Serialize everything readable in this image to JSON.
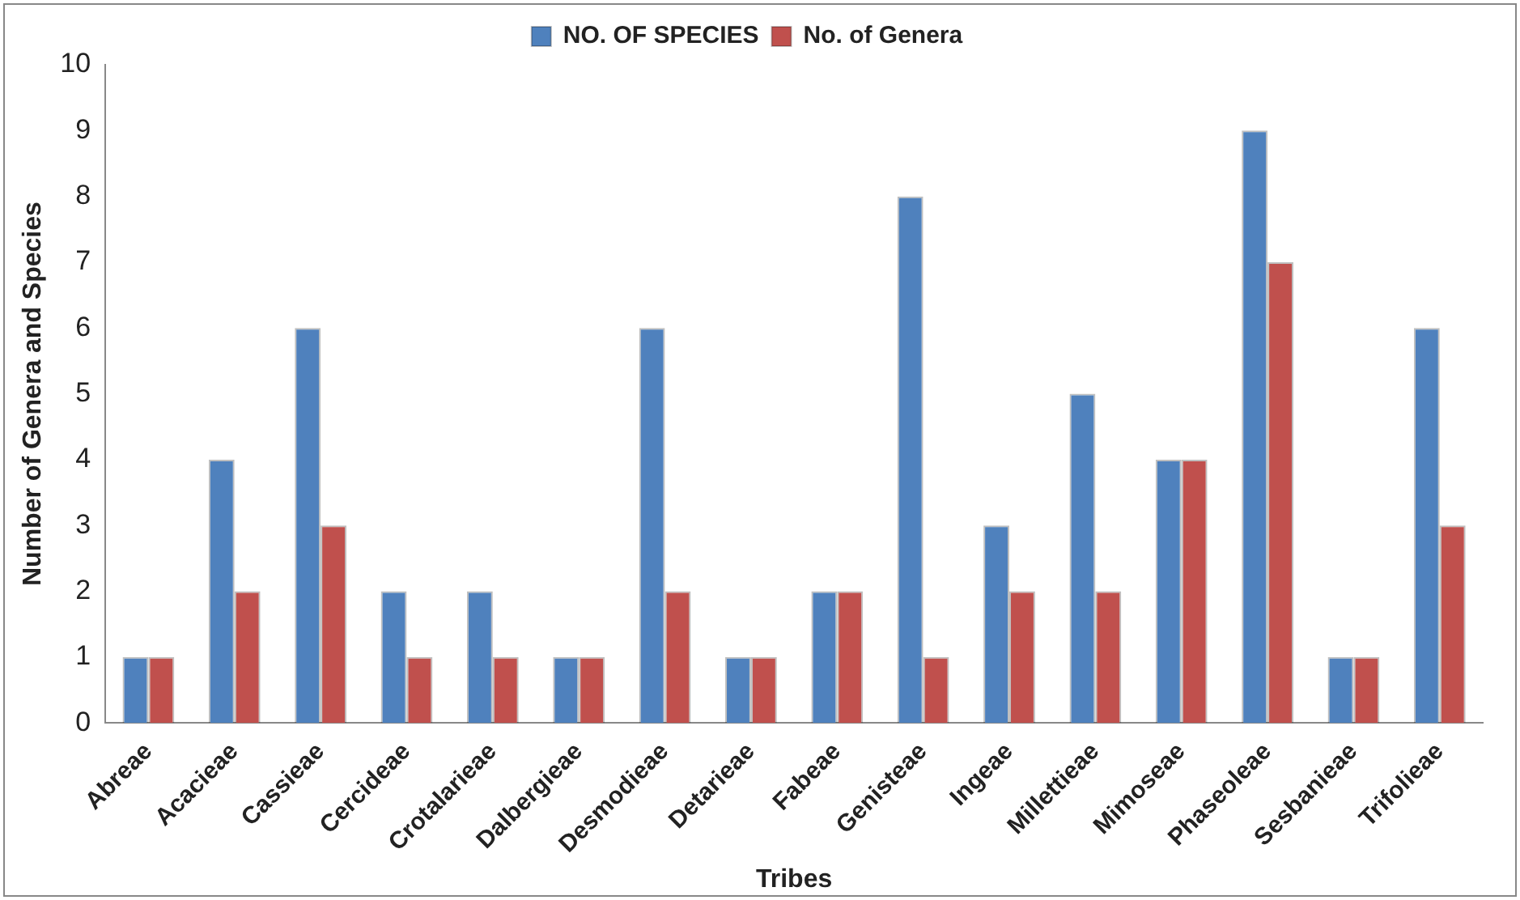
{
  "chart_data": {
    "type": "bar",
    "xlabel": "Tribes",
    "ylabel": "Number of Genera and Species",
    "categories": [
      "Abreae",
      "Acacieae",
      "Cassieae",
      "Cercideae",
      "Crotalarieae",
      "Dalbergieae",
      "Desmodieae",
      "Detarieae",
      "Fabeae",
      "Genisteae",
      "Ingeae",
      "Millettieae",
      "Mimoseae",
      "Phaseoleae",
      "Sesbanieae",
      "Trifolieae"
    ],
    "series": [
      {
        "name": "NO. OF SPECIES",
        "color": "#4f81bd",
        "values": [
          1,
          4,
          6,
          2,
          2,
          1,
          6,
          1,
          2,
          8,
          3,
          5,
          4,
          9,
          1,
          6
        ]
      },
      {
        "name": "No. of Genera",
        "color": "#c0504d",
        "values": [
          1,
          2,
          3,
          1,
          1,
          1,
          2,
          1,
          2,
          1,
          2,
          2,
          4,
          7,
          1,
          3
        ]
      }
    ],
    "ylim": [
      0,
      10
    ],
    "yticks": [
      0,
      1,
      2,
      3,
      4,
      5,
      6,
      7,
      8,
      9,
      10
    ],
    "grid": false,
    "legend": "top"
  }
}
